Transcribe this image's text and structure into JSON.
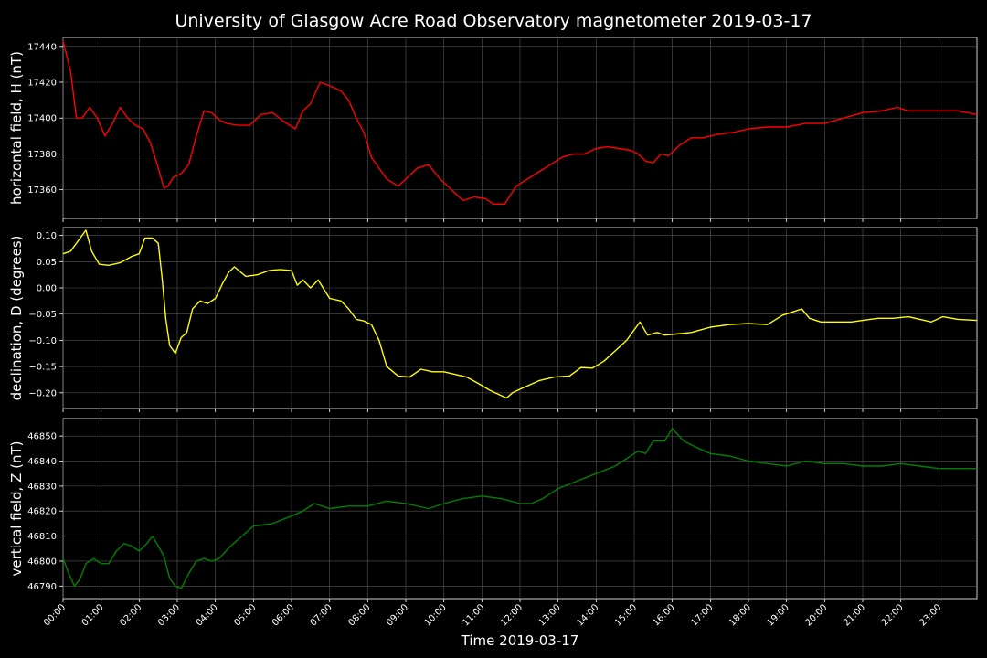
{
  "figure": {
    "title": "University of Glasgow Acre Road Observatory magnetometer 2019-03-17",
    "xlabel": "Time 2019-03-17"
  },
  "chart_data": [
    {
      "type": "line",
      "ylabel": "horizontal field, H (nT)",
      "color": "#ff0000",
      "ylim": [
        17344,
        17445
      ],
      "yticks": [
        17360,
        17380,
        17400,
        17420,
        17440
      ],
      "xlim": [
        0,
        24
      ],
      "grid": true,
      "x": [
        0,
        0.2,
        0.35,
        0.5,
        0.7,
        0.9,
        1.1,
        1.3,
        1.5,
        1.7,
        1.9,
        2.1,
        2.3,
        2.5,
        2.65,
        2.75,
        2.9,
        3.1,
        3.3,
        3.5,
        3.7,
        3.9,
        4.1,
        4.3,
        4.6,
        4.9,
        5.2,
        5.5,
        5.8,
        6.1,
        6.3,
        6.5,
        6.75,
        7.0,
        7.3,
        7.5,
        7.7,
        7.9,
        8.1,
        8.3,
        8.5,
        8.8,
        9.1,
        9.3,
        9.6,
        9.9,
        10.2,
        10.5,
        10.8,
        11.1,
        11.3,
        11.6,
        11.9,
        12.2,
        12.5,
        12.8,
        13.1,
        13.4,
        13.7,
        14.0,
        14.3,
        14.6,
        14.9,
        15.1,
        15.3,
        15.5,
        15.7,
        15.9,
        16.2,
        16.5,
        16.8,
        17.2,
        17.6,
        18.0,
        18.5,
        19.0,
        19.5,
        20.0,
        20.5,
        21.0,
        21.5,
        21.9,
        22.2,
        22.6,
        23.0,
        23.5,
        24.0
      ],
      "y": [
        17443,
        17426,
        17400,
        17400,
        17406,
        17400,
        17390,
        17397,
        17406,
        17400,
        17396,
        17394,
        17386,
        17372,
        17361,
        17362,
        17367,
        17369,
        17374,
        17390,
        17404,
        17403,
        17399,
        17397,
        17396,
        17396,
        17402,
        17403,
        17398,
        17394,
        17404,
        17408,
        17420,
        17418,
        17415,
        17410,
        17400,
        17392,
        17378,
        17372,
        17366,
        17362,
        17368,
        17372,
        17374,
        17366,
        17360,
        17354,
        17356,
        17355,
        17352,
        17352,
        17362,
        17366,
        17370,
        17374,
        17378,
        17380,
        17380,
        17383,
        17384,
        17383,
        17382,
        17380,
        17376,
        17375,
        17380,
        17379,
        17385,
        17389,
        17389,
        17391,
        17392,
        17394,
        17395,
        17395,
        17397,
        17397,
        17400,
        17403,
        17404,
        17406,
        17404,
        17404,
        17404,
        17404,
        17402
      ]
    },
    {
      "type": "line",
      "ylabel": "declination, D (degrees)",
      "color": "#ffff00",
      "ylim": [
        -0.23,
        0.115
      ],
      "yticks": [
        0.1,
        0.05,
        0.0,
        -0.05,
        -0.1,
        -0.15,
        -0.2
      ],
      "yticklabels": [
        "0.10",
        "0.05",
        "0.00",
        "−0.05",
        "−0.10",
        "−0.15",
        "−0.20"
      ],
      "xlim": [
        0,
        24
      ],
      "grid": true,
      "x": [
        0,
        0.2,
        0.4,
        0.6,
        0.75,
        0.95,
        1.2,
        1.5,
        1.8,
        2.0,
        2.15,
        2.35,
        2.5,
        2.6,
        2.7,
        2.8,
        2.95,
        3.1,
        3.25,
        3.4,
        3.6,
        3.8,
        4.0,
        4.2,
        4.35,
        4.5,
        4.8,
        5.1,
        5.4,
        5.7,
        6.0,
        6.15,
        6.3,
        6.5,
        6.7,
        7.0,
        7.3,
        7.5,
        7.7,
        7.9,
        8.1,
        8.3,
        8.5,
        8.8,
        9.1,
        9.4,
        9.7,
        10.0,
        10.3,
        10.6,
        10.9,
        11.2,
        11.5,
        11.65,
        11.8,
        12.1,
        12.5,
        12.9,
        13.3,
        13.6,
        13.9,
        14.2,
        14.5,
        14.8,
        15.0,
        15.15,
        15.35,
        15.6,
        15.8,
        16.1,
        16.5,
        17.0,
        17.5,
        18.0,
        18.5,
        18.9,
        19.2,
        19.4,
        19.6,
        19.9,
        20.3,
        20.7,
        21.0,
        21.4,
        21.8,
        22.2,
        22.5,
        22.8,
        23.1,
        23.5,
        24.0
      ],
      "y": [
        0.065,
        0.07,
        0.09,
        0.11,
        0.07,
        0.045,
        0.043,
        0.048,
        0.06,
        0.065,
        0.095,
        0.095,
        0.085,
        0.02,
        -0.06,
        -0.11,
        -0.125,
        -0.095,
        -0.085,
        -0.04,
        -0.025,
        -0.03,
        -0.02,
        0.01,
        0.03,
        0.04,
        0.022,
        0.025,
        0.033,
        0.035,
        0.033,
        0.005,
        0.015,
        0.0,
        0.015,
        -0.02,
        -0.025,
        -0.04,
        -0.06,
        -0.063,
        -0.07,
        -0.1,
        -0.15,
        -0.168,
        -0.17,
        -0.155,
        -0.16,
        -0.16,
        -0.165,
        -0.17,
        -0.182,
        -0.195,
        -0.205,
        -0.21,
        -0.2,
        -0.19,
        -0.177,
        -0.17,
        -0.168,
        -0.152,
        -0.153,
        -0.14,
        -0.12,
        -0.1,
        -0.08,
        -0.065,
        -0.09,
        -0.085,
        -0.09,
        -0.088,
        -0.085,
        -0.075,
        -0.07,
        -0.068,
        -0.07,
        -0.052,
        -0.045,
        -0.04,
        -0.058,
        -0.065,
        -0.065,
        -0.065,
        -0.062,
        -0.058,
        -0.058,
        -0.055,
        -0.06,
        -0.065,
        -0.055,
        -0.06,
        -0.062
      ]
    },
    {
      "type": "line",
      "ylabel": "vertical field, Z (nT)",
      "color": "#008000",
      "ylim": [
        46785,
        46857
      ],
      "yticks": [
        46790,
        46800,
        46810,
        46820,
        46830,
        46840,
        46850
      ],
      "xlim": [
        0,
        24
      ],
      "grid": true,
      "x": [
        0,
        0.15,
        0.3,
        0.45,
        0.6,
        0.8,
        1.0,
        1.2,
        1.4,
        1.6,
        1.8,
        2.0,
        2.2,
        2.35,
        2.5,
        2.65,
        2.8,
        2.95,
        3.1,
        3.3,
        3.5,
        3.7,
        3.9,
        4.1,
        4.4,
        4.7,
        5.0,
        5.5,
        6.0,
        6.3,
        6.6,
        7.0,
        7.5,
        8.0,
        8.5,
        9.0,
        9.6,
        10.0,
        10.5,
        11.0,
        11.5,
        12.0,
        12.3,
        12.6,
        13.0,
        13.5,
        14.0,
        14.5,
        14.8,
        15.1,
        15.3,
        15.5,
        15.8,
        16.0,
        16.3,
        16.7,
        17.0,
        17.5,
        18.0,
        18.5,
        19.0,
        19.5,
        20.0,
        20.5,
        21.0,
        21.5,
        22.0,
        22.5,
        23.0,
        23.5,
        24.0
      ],
      "y": [
        46801,
        46795,
        46790,
        46793,
        46799,
        46801,
        46799,
        46799,
        46804,
        46807,
        46806,
        46804,
        46807,
        46810,
        46806,
        46802,
        46793,
        46790,
        46789,
        46795,
        46800,
        46801,
        46800,
        46801,
        46806,
        46810,
        46814,
        46815,
        46818,
        46820,
        46823,
        46821,
        46822,
        46822,
        46824,
        46823,
        46821,
        46823,
        46825,
        46826,
        46825,
        46823,
        46823,
        46825,
        46829,
        46832,
        46835,
        46838,
        46841,
        46844,
        46843,
        46848,
        46848,
        46853,
        46848,
        46845,
        46843,
        46842,
        46840,
        46839,
        46838,
        46840,
        46839,
        46839,
        46838,
        46838,
        46839,
        46838,
        46837,
        46837,
        46837
      ]
    }
  ],
  "xticks": {
    "values": [
      0,
      1,
      2,
      3,
      4,
      5,
      6,
      7,
      8,
      9,
      10,
      11,
      12,
      13,
      14,
      15,
      16,
      17,
      18,
      19,
      20,
      21,
      22,
      23
    ],
    "labels": [
      "00:00",
      "01:00",
      "02:00",
      "03:00",
      "04:00",
      "05:00",
      "06:00",
      "07:00",
      "08:00",
      "09:00",
      "10:00",
      "11:00",
      "12:00",
      "13:00",
      "14:00",
      "15:00",
      "16:00",
      "17:00",
      "18:00",
      "19:00",
      "20:00",
      "21:00",
      "22:00",
      "23:00"
    ]
  }
}
